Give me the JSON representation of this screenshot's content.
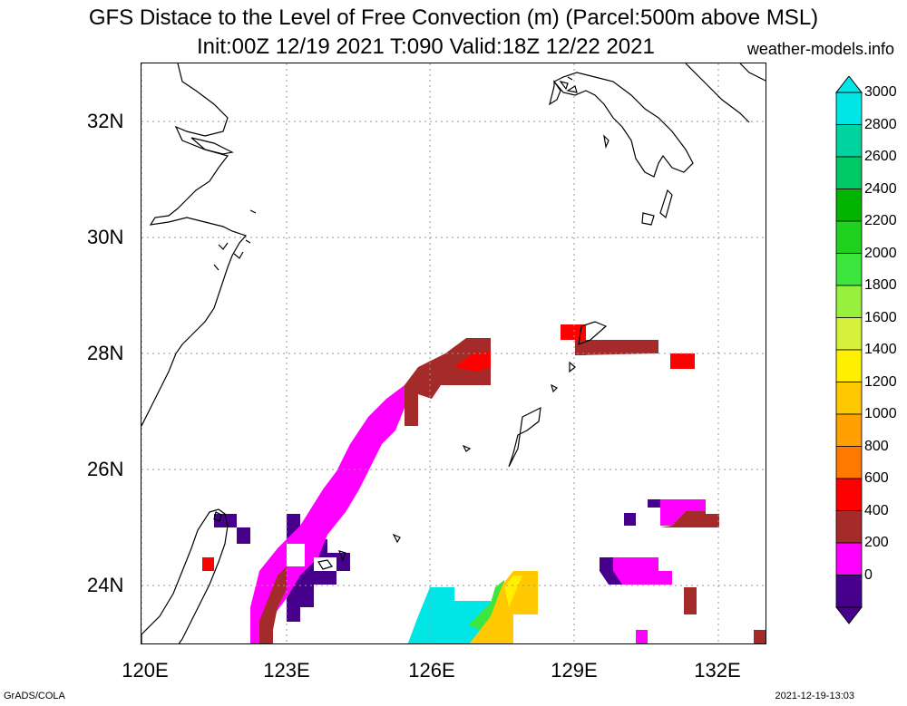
{
  "title_line1": "GFS Distace to the Level of Free Convection (m) (Parcel:500m above MSL)",
  "title_line2": "Init:00Z 12/19 2021 T:090 Valid:18Z 12/22 2021",
  "site": "weather-models.info",
  "lat_labels": [
    "32N",
    "30N",
    "28N",
    "26N",
    "24N"
  ],
  "lon_labels": [
    "120E",
    "123E",
    "126E",
    "129E",
    "132E"
  ],
  "colorbar": {
    "labels": [
      "3000",
      "2800",
      "2600",
      "2400",
      "2200",
      "2000",
      "1800",
      "1600",
      "1400",
      "1200",
      "1000",
      "800",
      "600",
      "400",
      "200",
      "0"
    ],
    "colors": [
      "#00e6e6",
      "#00d2a0",
      "#00c864",
      "#00b400",
      "#1ed21e",
      "#3ce63c",
      "#96f03c",
      "#d7f03c",
      "#fff000",
      "#ffc800",
      "#ffa000",
      "#ff7800",
      "#ff0000",
      "#a52a2a",
      "#ff00ff",
      "#46008c"
    ]
  },
  "footer_left": "GrADS/COLA",
  "footer_right": "2021-12-19-13:03"
}
